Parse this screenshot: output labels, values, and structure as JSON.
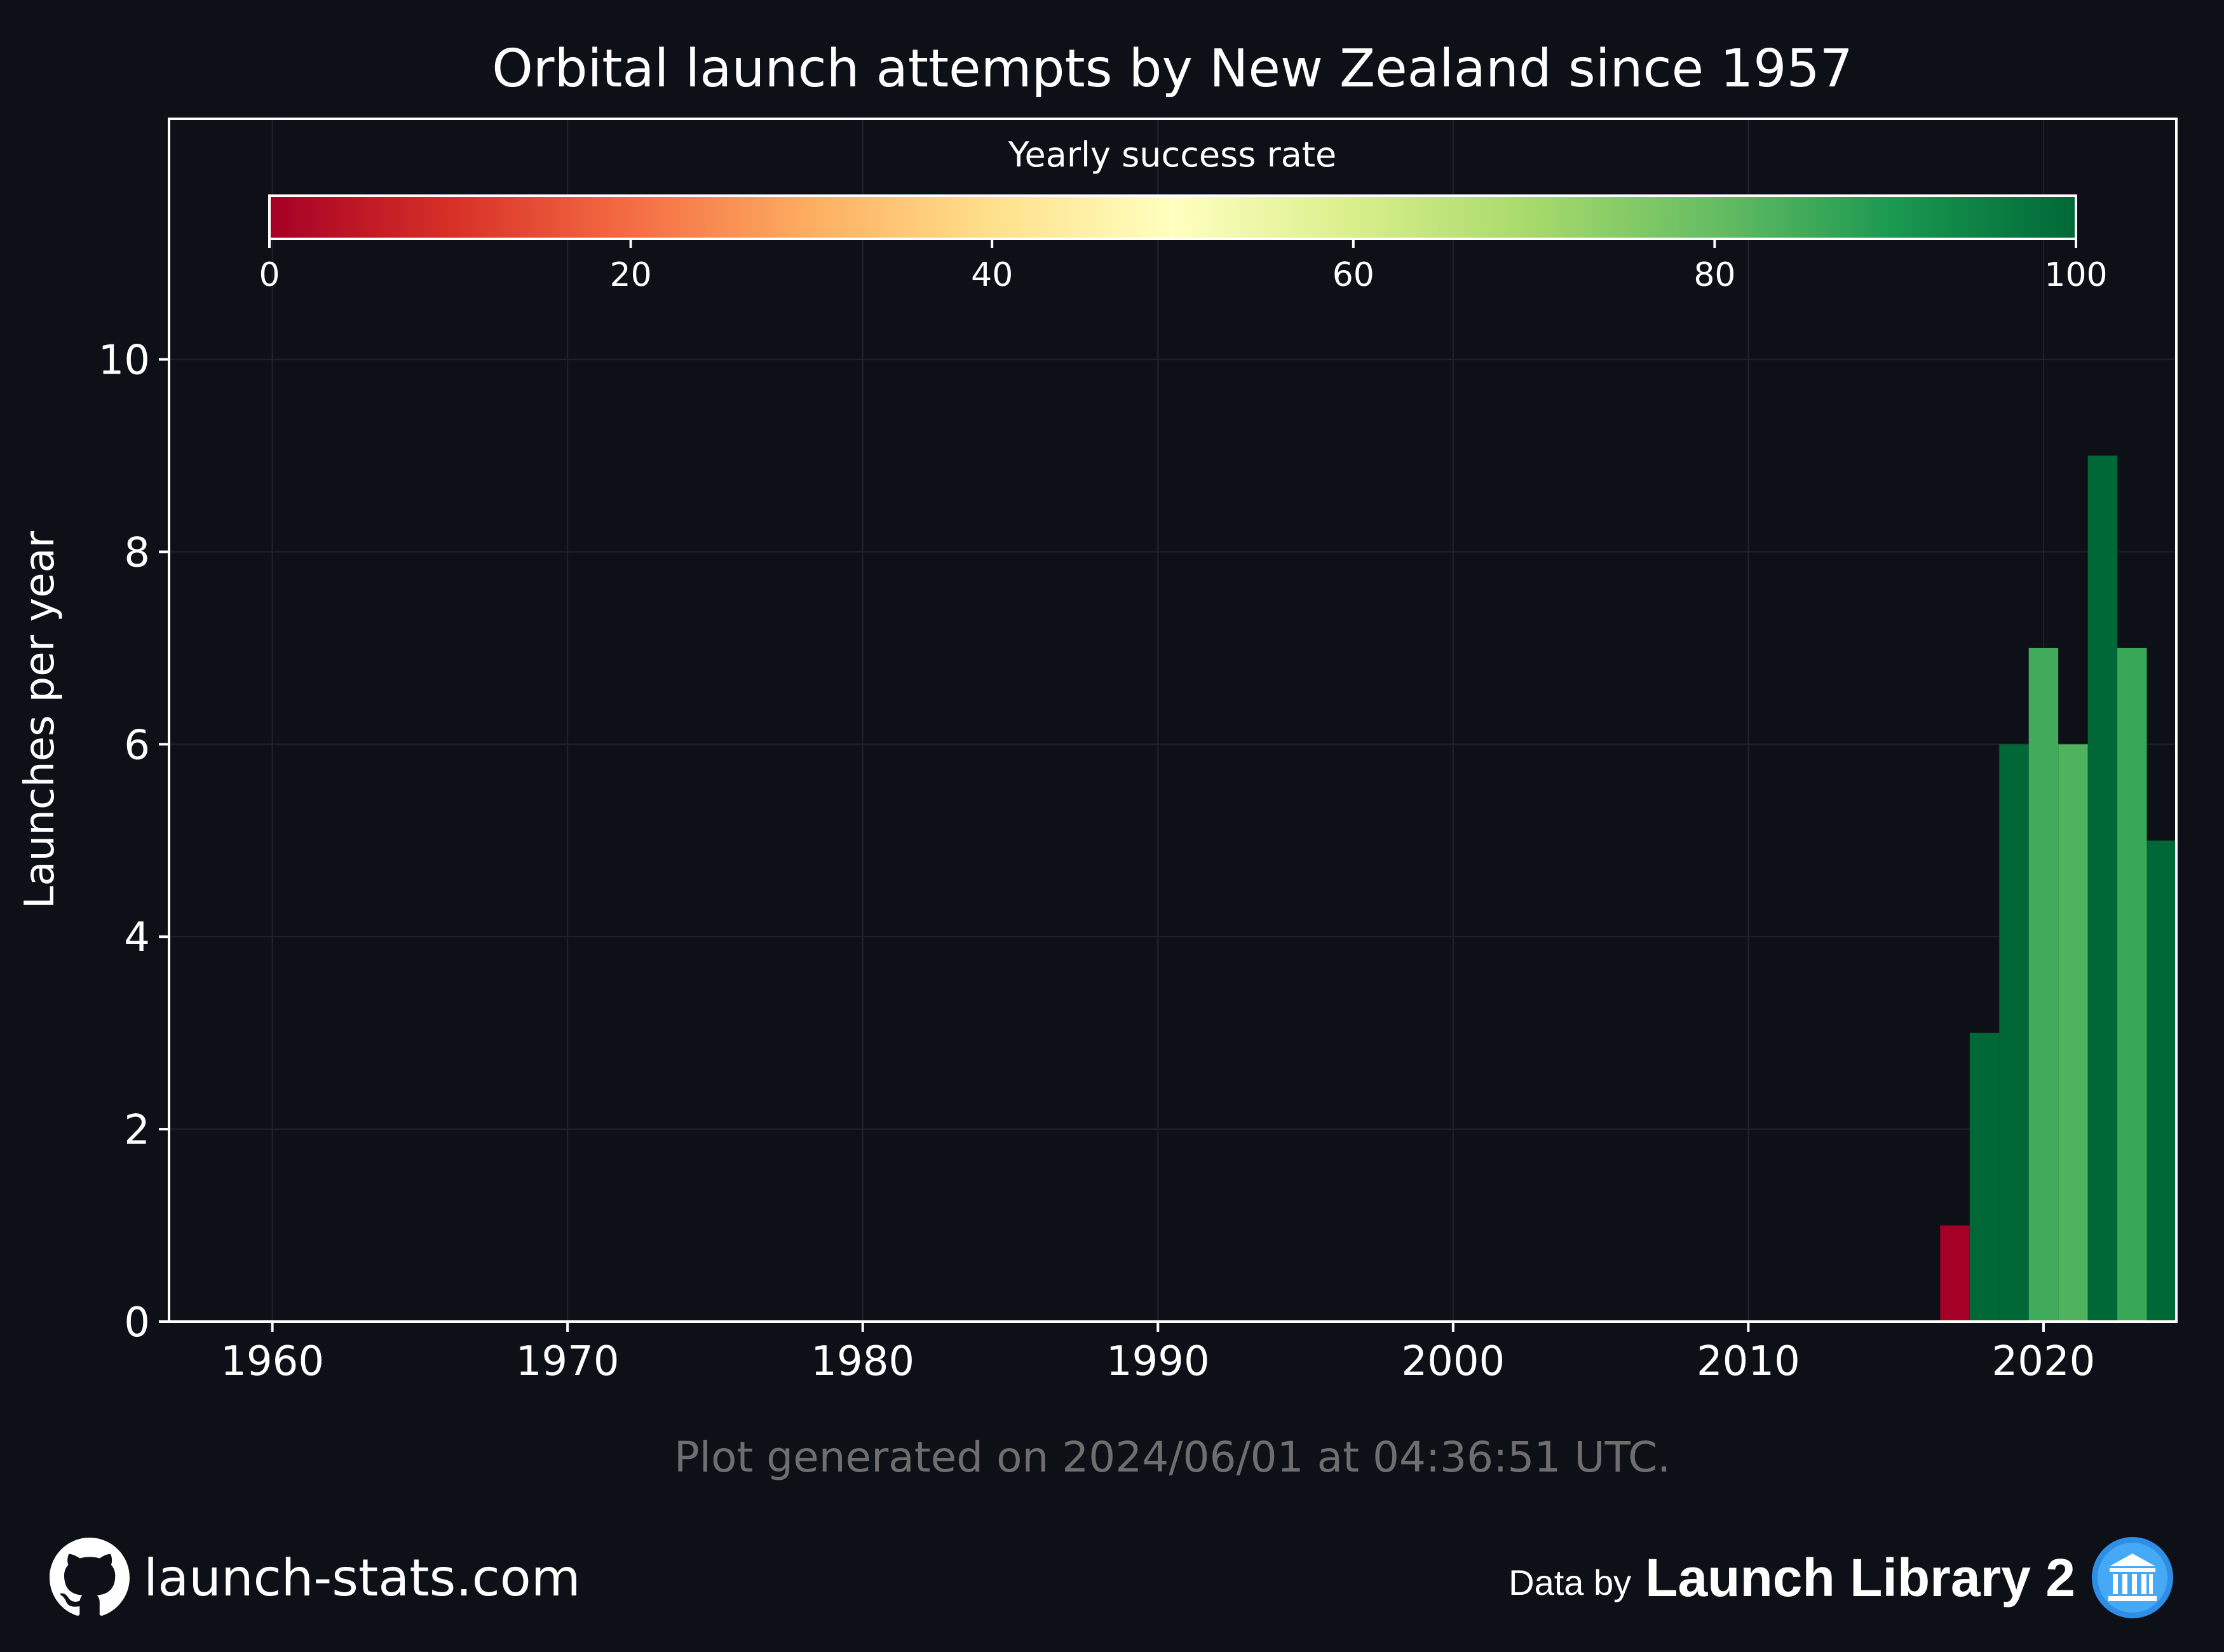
{
  "chart_data": {
    "type": "bar",
    "title": "Orbital launch attempts by New Zealand since 1957",
    "xlabel": "",
    "ylabel": "Launches per year",
    "x": [
      2017,
      2018,
      2019,
      2020,
      2021,
      2022,
      2023,
      2024
    ],
    "values": [
      1,
      3,
      6,
      7,
      6,
      9,
      7,
      5
    ],
    "success_rate": [
      0,
      100,
      100,
      85,
      83,
      100,
      86,
      100
    ],
    "xlim": [
      1956.5,
      2024.5
    ],
    "ylim": [
      0,
      12.5
    ],
    "xticks": [
      1960,
      1970,
      1980,
      1990,
      2000,
      2010,
      2020
    ],
    "yticks": [
      0,
      2,
      4,
      6,
      8,
      10
    ],
    "grid": true,
    "colorbar": {
      "label": "Yearly success rate",
      "range": [
        0,
        100
      ],
      "ticks": [
        0,
        20,
        40,
        60,
        80,
        100
      ],
      "placement": "top",
      "colormap": [
        "#a50026",
        "#d73027",
        "#f46d43",
        "#fdae61",
        "#fee08b",
        "#ffffbf",
        "#d9ef8b",
        "#a6d96a",
        "#66bd63",
        "#1a9850",
        "#006837"
      ]
    }
  },
  "footer": {
    "generated": "Plot generated on 2024/06/01 at 04:36:51 UTC.",
    "site": "launch-stats.com",
    "data_by": "Data by",
    "source": "Launch Library 2"
  },
  "colors": {
    "background": "#0d1017",
    "text": "#ffffff",
    "muted": "#6e6e6e",
    "grid": "#1f232b"
  },
  "icons": [
    "github-icon",
    "launch-library-icon"
  ]
}
